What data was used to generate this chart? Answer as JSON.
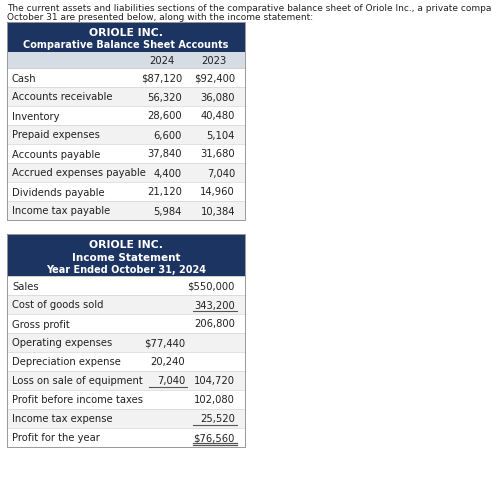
{
  "intro_text_line1": "The current assets and liabilities sections of the comparative balance sheet of Oriole Inc., a private company reporting under ASPE, at",
  "intro_text_line2": "October 31 are presented below, along with the income statement:",
  "table1": {
    "header_line1": "ORIOLE INC.",
    "header_line2": "Comparative Balance Sheet Accounts",
    "col_headers": [
      "2024",
      "2023"
    ],
    "rows": [
      [
        "Cash",
        "$87,120",
        "$92,400"
      ],
      [
        "Accounts receivable",
        "56,320",
        "36,080"
      ],
      [
        "Inventory",
        "28,600",
        "40,480"
      ],
      [
        "Prepaid expenses",
        "6,600",
        "5,104"
      ],
      [
        "Accounts payable",
        "37,840",
        "31,680"
      ],
      [
        "Accrued expenses payable",
        "4,400",
        "7,040"
      ],
      [
        "Dividends payable",
        "21,120",
        "14,960"
      ],
      [
        "Income tax payable",
        "5,984",
        "10,384"
      ]
    ],
    "header_bg": "#1c3461",
    "header_fg": "#ffffff",
    "subheader_bg": "#d6dce4",
    "row_bg_even": "#ffffff",
    "row_bg_odd": "#f2f2f2"
  },
  "table2": {
    "header_line1": "ORIOLE INC.",
    "header_line2": "Income Statement",
    "header_line3": "Year Ended October 31, 2024",
    "rows": [
      {
        "label": "Sales",
        "col1": "",
        "col2": "$550,000",
        "ul1": false,
        "ul2": false,
        "dul2": false
      },
      {
        "label": "Cost of goods sold",
        "col1": "",
        "col2": "343,200",
        "ul1": false,
        "ul2": true,
        "dul2": false
      },
      {
        "label": "Gross profit",
        "col1": "",
        "col2": "206,800",
        "ul1": false,
        "ul2": false,
        "dul2": false
      },
      {
        "label": "Operating expenses",
        "col1": "$77,440",
        "col2": "",
        "ul1": false,
        "ul2": false,
        "dul2": false
      },
      {
        "label": "Depreciation expense",
        "col1": "20,240",
        "col2": "",
        "ul1": false,
        "ul2": false,
        "dul2": false
      },
      {
        "label": "Loss on sale of equipment",
        "col1": "7,040",
        "col2": "104,720",
        "ul1": true,
        "ul2": false,
        "dul2": false
      },
      {
        "label": "Profit before income taxes",
        "col1": "",
        "col2": "102,080",
        "ul1": false,
        "ul2": false,
        "dul2": false
      },
      {
        "label": "Income tax expense",
        "col1": "",
        "col2": "25,520",
        "ul1": false,
        "ul2": true,
        "dul2": false
      },
      {
        "label": "Profit for the year",
        "col1": "",
        "col2": "$76,560",
        "ul1": false,
        "ul2": false,
        "dul2": true
      }
    ],
    "header_bg": "#1c3461",
    "header_fg": "#ffffff"
  },
  "page_bg": "#ffffff",
  "text_color": "#222222",
  "fs_intro": 6.5,
  "fs_header": 7.8,
  "fs_body": 7.2
}
